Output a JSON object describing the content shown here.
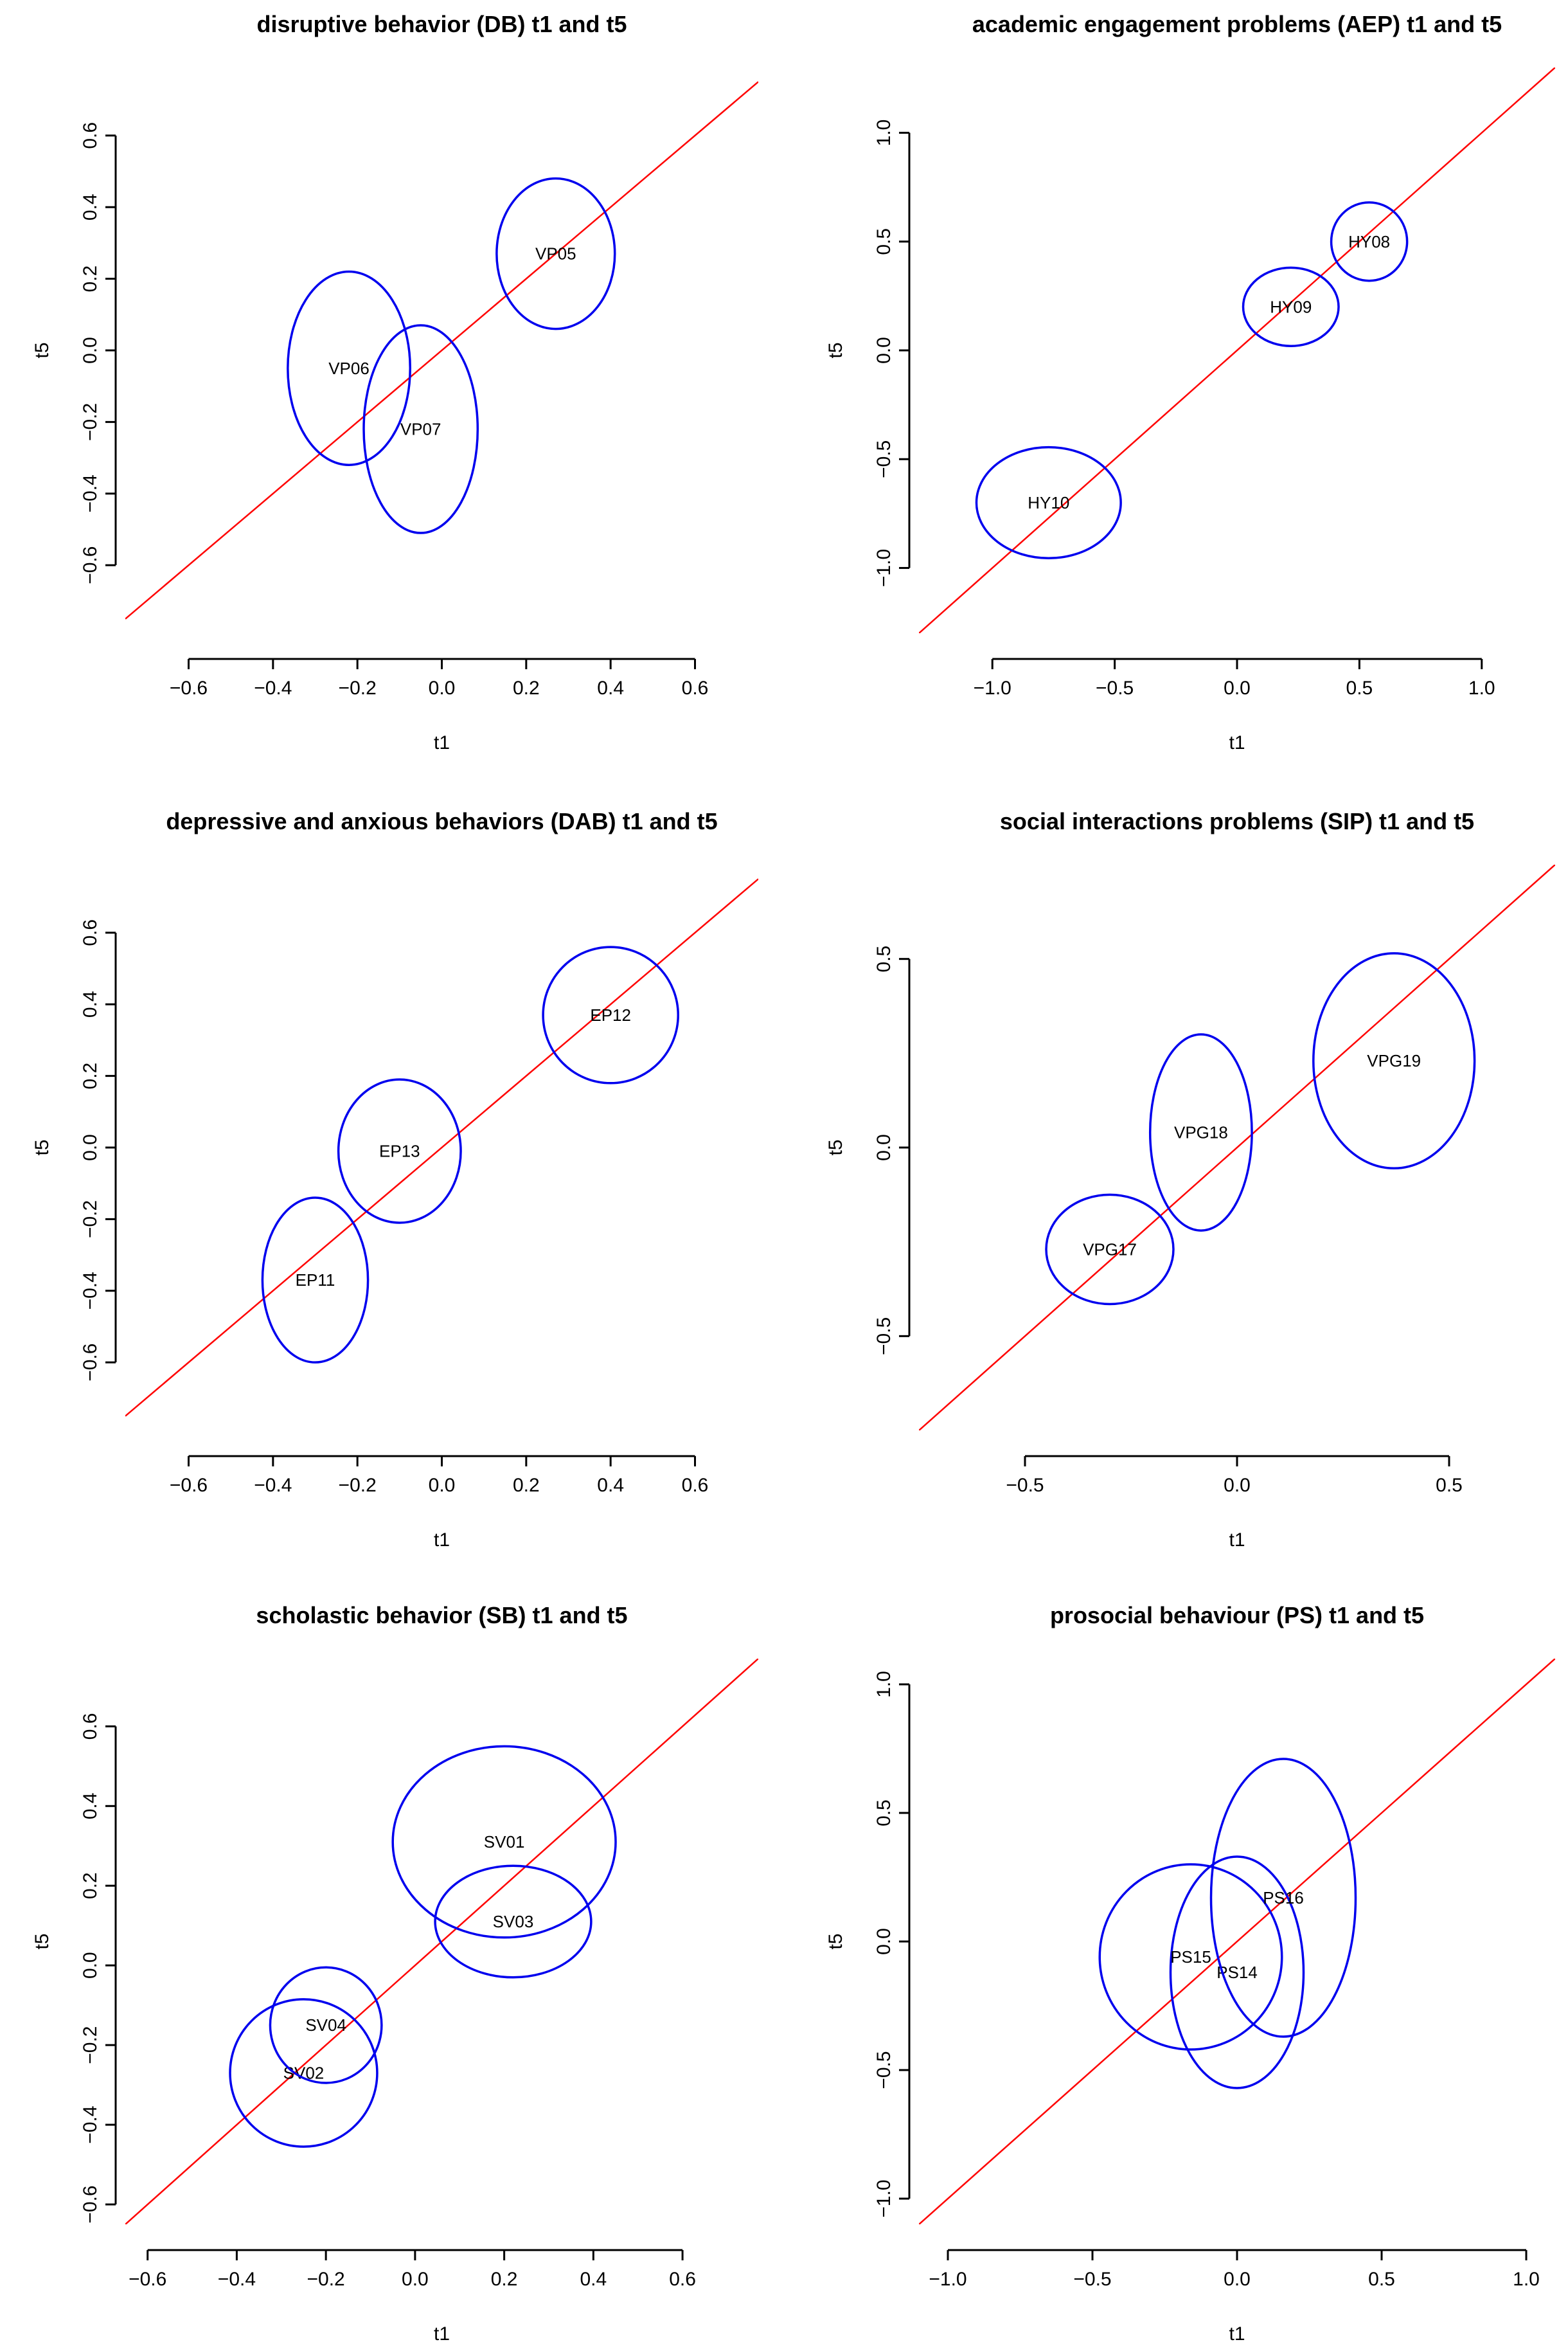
{
  "chart_data": [
    {
      "type": "scatter",
      "title": "disruptive behavior (DB) t1 and t5",
      "xlabel": "t1",
      "ylabel": "t5",
      "xlim": [
        -0.75,
        0.75
      ],
      "ylim": [
        -0.79,
        0.79
      ],
      "xticks": [
        -0.6,
        -0.4,
        -0.2,
        0.0,
        0.2,
        0.4,
        0.6
      ],
      "yticks": [
        -0.6,
        -0.4,
        -0.2,
        0.0,
        0.2,
        0.4,
        0.6
      ],
      "tick_labels_x": [
        "−0.6",
        "−0.4",
        "−0.2",
        "0.0",
        "0.2",
        "0.4",
        "0.6"
      ],
      "tick_labels_y": [
        "−0.6",
        "−0.4",
        "−0.2",
        "0.0",
        "0.2",
        "0.4",
        "0.6"
      ],
      "reference_line": "y = x",
      "ellipses": [
        {
          "label": "VP05",
          "cx": 0.27,
          "cy": 0.27,
          "rx": 0.14,
          "ry": 0.21
        },
        {
          "label": "VP06",
          "cx": -0.22,
          "cy": -0.05,
          "rx": 0.145,
          "ry": 0.27
        },
        {
          "label": "VP07",
          "cx": -0.05,
          "cy": -0.22,
          "rx": 0.135,
          "ry": 0.29
        }
      ]
    },
    {
      "type": "scatter",
      "title": "academic engagement problems (AEP) t1 and t5",
      "xlabel": "t1",
      "ylabel": "t5",
      "xlim": [
        -1.3,
        1.3
      ],
      "ylim": [
        -1.3,
        1.3
      ],
      "xticks": [
        -1.0,
        -0.5,
        0.0,
        0.5,
        1.0
      ],
      "yticks": [
        -1.0,
        -0.5,
        0.0,
        0.5,
        1.0
      ],
      "tick_labels_x": [
        "−1.0",
        "−0.5",
        "0.0",
        "0.5",
        "1.0"
      ],
      "tick_labels_y": [
        "−1.0",
        "−0.5",
        "0.0",
        "0.5",
        "1.0"
      ],
      "reference_line": "y = x",
      "ellipses": [
        {
          "label": "HY08",
          "cx": 0.54,
          "cy": 0.5,
          "rx": 0.155,
          "ry": 0.18
        },
        {
          "label": "HY09",
          "cx": 0.22,
          "cy": 0.2,
          "rx": 0.195,
          "ry": 0.18
        },
        {
          "label": "HY10",
          "cx": -0.77,
          "cy": -0.7,
          "rx": 0.295,
          "ry": 0.255
        }
      ]
    },
    {
      "type": "scatter",
      "title": "depressive and anxious behaviors (DAB) t1 and t5",
      "xlabel": "t1",
      "ylabel": "t5",
      "xlim": [
        -0.75,
        0.75
      ],
      "ylim": [
        -0.79,
        0.79
      ],
      "xticks": [
        -0.6,
        -0.4,
        -0.2,
        0.0,
        0.2,
        0.4,
        0.6
      ],
      "yticks": [
        -0.6,
        -0.4,
        -0.2,
        0.0,
        0.2,
        0.4,
        0.6
      ],
      "tick_labels_x": [
        "−0.6",
        "−0.4",
        "−0.2",
        "0.0",
        "0.2",
        "0.4",
        "0.6"
      ],
      "tick_labels_y": [
        "−0.6",
        "−0.4",
        "−0.2",
        "0.0",
        "0.2",
        "0.4",
        "0.6"
      ],
      "reference_line": "y = x",
      "ellipses": [
        {
          "label": "EP11",
          "cx": -0.3,
          "cy": -0.37,
          "rx": 0.125,
          "ry": 0.23
        },
        {
          "label": "EP12",
          "cx": 0.4,
          "cy": 0.37,
          "rx": 0.16,
          "ry": 0.19
        },
        {
          "label": "EP13",
          "cx": -0.1,
          "cy": -0.01,
          "rx": 0.145,
          "ry": 0.2
        }
      ]
    },
    {
      "type": "scatter",
      "title": "social interactions problems (SIP) t1 and t5",
      "xlabel": "t1",
      "ylabel": "t5",
      "xlim": [
        -0.75,
        0.75
      ],
      "ylim": [
        -0.75,
        0.75
      ],
      "xticks": [
        -0.5,
        0.0,
        0.5
      ],
      "yticks": [
        -0.5,
        0.0,
        0.5
      ],
      "tick_labels_x": [
        "−0.5",
        "0.0",
        "0.5"
      ],
      "tick_labels_y": [
        "−0.5",
        "0.0",
        "0.5"
      ],
      "reference_line": "y = x",
      "ellipses": [
        {
          "label": "VPG17",
          "cx": -0.3,
          "cy": -0.27,
          "rx": 0.15,
          "ry": 0.145
        },
        {
          "label": "VPG18",
          "cx": -0.085,
          "cy": 0.04,
          "rx": 0.12,
          "ry": 0.26
        },
        {
          "label": "VPG19",
          "cx": 0.37,
          "cy": 0.23,
          "rx": 0.19,
          "ry": 0.285
        }
      ]
    },
    {
      "type": "scatter",
      "title": "scholastic behavior (SB) t1 and t5",
      "xlabel": "t1",
      "ylabel": "t5",
      "xlim": [
        -0.65,
        0.77
      ],
      "ylim": [
        -0.65,
        0.77
      ],
      "xticks": [
        -0.6,
        -0.4,
        -0.2,
        0.0,
        0.2,
        0.4,
        0.6
      ],
      "yticks": [
        -0.6,
        -0.4,
        -0.2,
        0.0,
        0.2,
        0.4,
        0.6
      ],
      "tick_labels_x": [
        "−0.6",
        "−0.4",
        "−0.2",
        "0.0",
        "0.2",
        "0.4",
        "0.6"
      ],
      "tick_labels_y": [
        "−0.6",
        "−0.4",
        "−0.2",
        "0.0",
        "0.2",
        "0.4",
        "0.6"
      ],
      "reference_line": "y = x",
      "ellipses": [
        {
          "label": "SV01",
          "cx": 0.2,
          "cy": 0.31,
          "rx": 0.25,
          "ry": 0.24
        },
        {
          "label": "SV02",
          "cx": -0.25,
          "cy": -0.27,
          "rx": 0.165,
          "ry": 0.185
        },
        {
          "label": "SV03",
          "cx": 0.22,
          "cy": 0.11,
          "rx": 0.175,
          "ry": 0.14
        },
        {
          "label": "SV04",
          "cx": -0.2,
          "cy": -0.15,
          "rx": 0.125,
          "ry": 0.145
        }
      ]
    },
    {
      "type": "scatter",
      "title": "prosocial behaviour (PS) t1 and t5",
      "xlabel": "t1",
      "ylabel": "t5",
      "xlim": [
        -1.1,
        1.1
      ],
      "ylim": [
        -1.1,
        1.1
      ],
      "xticks": [
        -1.0,
        -0.5,
        0.0,
        0.5,
        1.0
      ],
      "yticks": [
        -1.0,
        -0.5,
        0.0,
        0.5,
        1.0
      ],
      "tick_labels_x": [
        "−1.0",
        "−0.5",
        "0.0",
        "0.5",
        "1.0"
      ],
      "tick_labels_y": [
        "−1.0",
        "−0.5",
        "0.0",
        "0.5",
        "1.0"
      ],
      "reference_line": "y = x",
      "ellipses": [
        {
          "label": "PS14",
          "cx": 0.0,
          "cy": -0.12,
          "rx": 0.23,
          "ry": 0.45
        },
        {
          "label": "PS15",
          "cx": -0.16,
          "cy": -0.06,
          "rx": 0.315,
          "ry": 0.36
        },
        {
          "label": "PS16",
          "cx": 0.16,
          "cy": 0.17,
          "rx": 0.25,
          "ry": 0.54
        }
      ]
    }
  ],
  "colors": {
    "ellipse": "#0000ee",
    "reference_line": "#ff0000",
    "axis": "#000000"
  }
}
